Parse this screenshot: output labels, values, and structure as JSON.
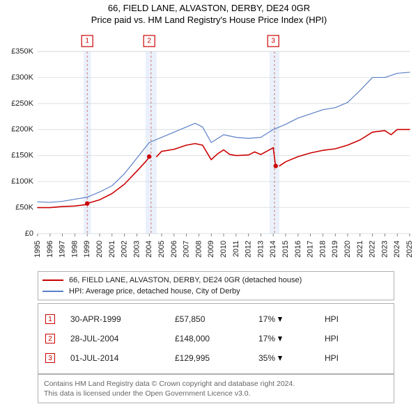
{
  "title": {
    "line1": "66, FIELD LANE, ALVASTON, DERBY, DE24 0GR",
    "line2": "Price paid vs. HM Land Registry's House Price Index (HPI)"
  },
  "chart": {
    "type": "line",
    "background_color": "#ffffff",
    "fontsize_axis": 11,
    "x": {
      "min": 1995,
      "max": 2025,
      "ticks": [
        1995,
        1996,
        1997,
        1998,
        1999,
        2000,
        2001,
        2002,
        2003,
        2004,
        2005,
        2006,
        2007,
        2008,
        2009,
        2010,
        2011,
        2012,
        2013,
        2014,
        2015,
        2016,
        2017,
        2018,
        2019,
        2020,
        2021,
        2022,
        2023,
        2024,
        2025
      ]
    },
    "y": {
      "min": 0,
      "max": 350000,
      "ticks": [
        0,
        50000,
        100000,
        150000,
        200000,
        250000,
        300000,
        350000
      ],
      "tick_labels": [
        "£0",
        "£50K",
        "£100K",
        "£150K",
        "£200K",
        "£250K",
        "£300K",
        "£350K"
      ]
    },
    "grid_color": "#cfd4da",
    "grid_width": 0.7,
    "gutter_color": "#eaf1fb",
    "gutters": [
      {
        "from": 1998.7,
        "to": 1999.3
      },
      {
        "from": 2003.7,
        "to": 2004.6
      },
      {
        "from": 2013.7,
        "to": 2014.5
      }
    ],
    "gutter_divider_color": "#cc6666",
    "gutter_divider_dash": "3,3",
    "series": [
      {
        "name": "price_paid",
        "label": "66, FIELD LANE, ALVASTON, DERBY, DE24 0GR (detached house)",
        "color": "#cc0000",
        "width": 1.6,
        "segments": [
          {
            "x": [
              1995,
              1996,
              1997,
              1998,
              1999
            ],
            "y": [
              50000,
              50000,
              52000,
              53000,
              56000
            ]
          },
          {
            "x": [
              1999,
              2000,
              2001,
              2002,
              2003,
              2003.7,
              2004
            ],
            "y": [
              58000,
              65000,
              77000,
              95000,
              120000,
              138000,
              147000
            ]
          },
          {
            "x": [
              2004.6,
              2005,
              2006,
              2007,
              2007.7,
              2008.3,
              2009,
              2009.5,
              2010,
              2010.5,
              2011,
              2012,
              2012.5,
              2013,
              2014
            ],
            "y": [
              148000,
              158000,
              162000,
              170000,
              173000,
              170000,
              142000,
              153000,
              161000,
              152000,
              150000,
              151000,
              157000,
              152000,
              165000
            ]
          },
          {
            "x": [
              2014,
              2014.2
            ],
            "y": [
              165000,
              128000
            ]
          },
          {
            "x": [
              2014.5,
              2015,
              2016,
              2017,
              2018,
              2019,
              2020,
              2021,
              2022,
              2023,
              2023.5,
              2024,
              2025
            ],
            "y": [
              130000,
              138000,
              148000,
              155000,
              160000,
              163000,
              170000,
              180000,
              195000,
              198000,
              190000,
              200000,
              200000
            ]
          }
        ],
        "points": [
          {
            "x": 1999,
            "y": 57850
          },
          {
            "x": 2004,
            "y": 148000
          },
          {
            "x": 2014.2,
            "y": 129995
          }
        ]
      },
      {
        "name": "hpi",
        "label": "HPI: Average price, detached house, City of Derby",
        "color": "#5b7fc7",
        "width": 1.2,
        "segments": [
          {
            "x": [
              1995,
              1996,
              1997,
              1998,
              1999,
              2000,
              2001,
              2002,
              2003,
              2004,
              2005,
              2006,
              2007,
              2007.7,
              2008.3,
              2009,
              2010,
              2011,
              2012,
              2013,
              2014,
              2015,
              2016,
              2017,
              2018,
              2019,
              2020,
              2021,
              2022,
              2023,
              2024,
              2025
            ],
            "y": [
              61000,
              60000,
              62000,
              66000,
              70000,
              80000,
              92000,
              115000,
              145000,
              175000,
              185000,
              195000,
              205000,
              212000,
              205000,
              175000,
              190000,
              185000,
              183000,
              185000,
              200000,
              210000,
              222000,
              230000,
              238000,
              242000,
              252000,
              275000,
              300000,
              300000,
              308000,
              310000
            ]
          }
        ]
      }
    ],
    "markers": [
      {
        "n": "1",
        "x": 1999
      },
      {
        "n": "2",
        "x": 2004
      },
      {
        "n": "3",
        "x": 2014
      }
    ]
  },
  "legend": {
    "items": [
      {
        "color": "#cc0000",
        "label": "66, FIELD LANE, ALVASTON, DERBY, DE24 0GR (detached house)"
      },
      {
        "color": "#5b7fc7",
        "label": "HPI: Average price, detached house, City of Derby"
      }
    ]
  },
  "sales": {
    "hpi_label": "HPI",
    "rows": [
      {
        "n": "1",
        "date": "30-APR-1999",
        "price": "£57,850",
        "delta": "17%",
        "dir": "down"
      },
      {
        "n": "2",
        "date": "28-JUL-2004",
        "price": "£148,000",
        "delta": "17%",
        "dir": "down"
      },
      {
        "n": "3",
        "date": "01-JUL-2014",
        "price": "£129,995",
        "delta": "35%",
        "dir": "down"
      }
    ]
  },
  "license": {
    "line1": "Contains HM Land Registry data © Crown copyright and database right 2024.",
    "line2": "This data is licensed under the Open Government Licence v3.0."
  }
}
